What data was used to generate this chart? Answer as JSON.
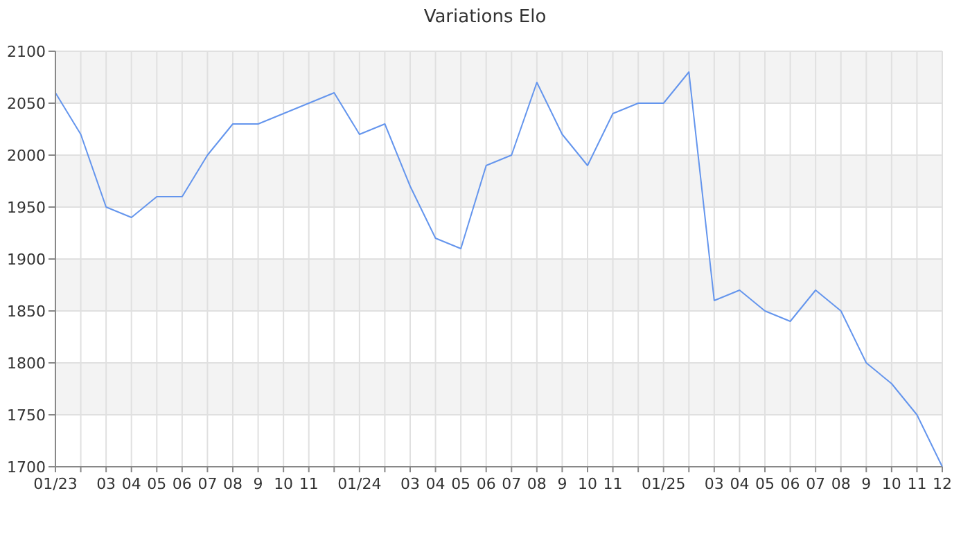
{
  "chart_data": {
    "type": "line",
    "title": "Variations Elo",
    "categories": [
      "01/23",
      null,
      "03",
      "04",
      "05",
      "06",
      "07",
      "08",
      "9",
      "10",
      "11",
      null,
      "01/24",
      null,
      "03",
      "04",
      "05",
      "06",
      "07",
      "08",
      "9",
      "10",
      "11",
      null,
      "01/25",
      null,
      "03",
      "04",
      "05",
      "06",
      "07",
      "08",
      "9",
      "10",
      "11",
      "12"
    ],
    "series": [
      {
        "color": "#6495ed",
        "values": [
          2060,
          2020,
          1950,
          1940,
          1960,
          1960,
          2000,
          2030,
          2030,
          2040,
          2050,
          2060,
          2020,
          2030,
          1970,
          1920,
          1910,
          1990,
          2000,
          2070,
          2020,
          1990,
          2040,
          2050,
          2050,
          2080,
          1860,
          1870,
          1850,
          1840,
          1870,
          1850,
          1800,
          1780,
          1750,
          1700
        ]
      }
    ],
    "ylim": [
      1700,
      2100
    ],
    "yticks": [
      1700,
      1750,
      1800,
      1850,
      1900,
      1950,
      2000,
      2050,
      2100
    ],
    "grid": true,
    "marker": "none",
    "line_style": "solid"
  }
}
